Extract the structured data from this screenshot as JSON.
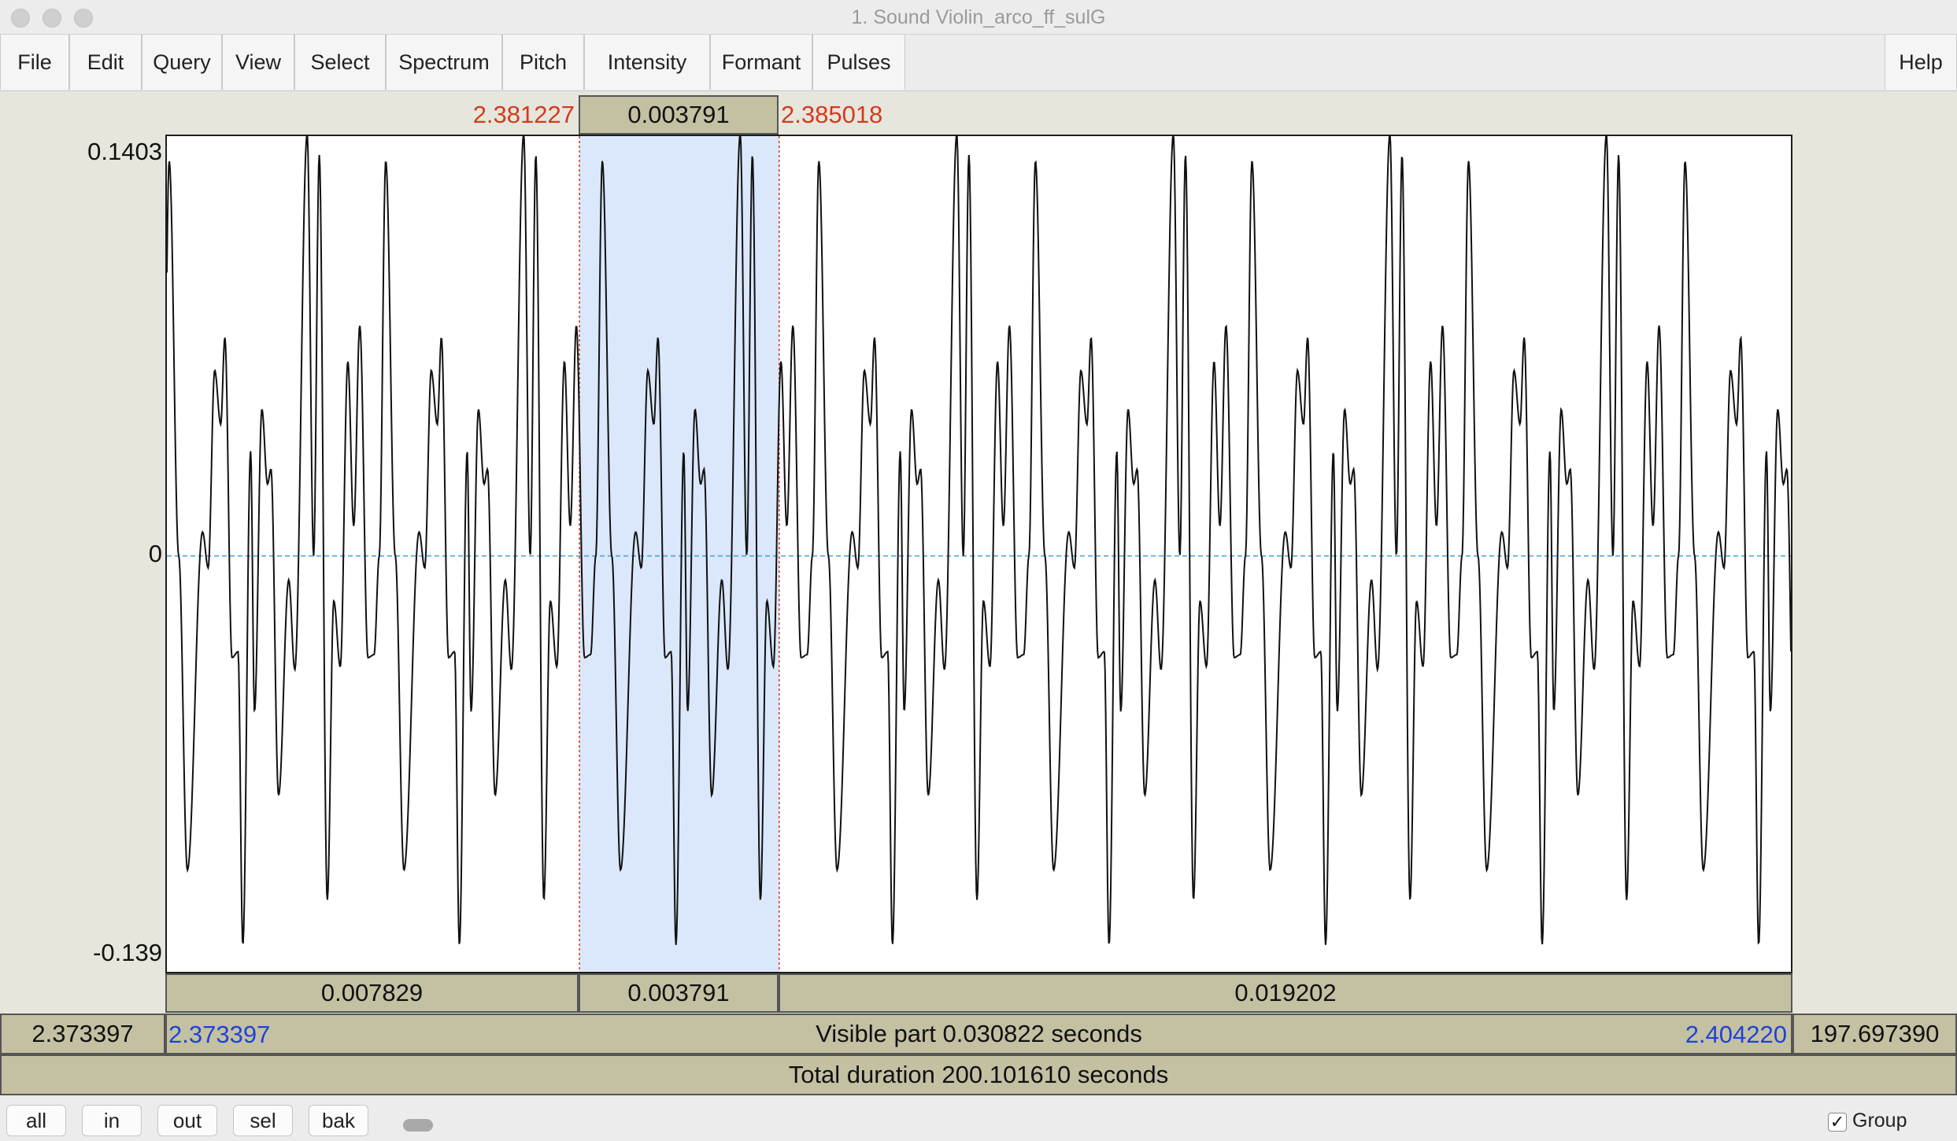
{
  "window": {
    "title": "1. Sound Violin_arco_ff_sulG"
  },
  "menu": {
    "items": [
      "File",
      "Edit",
      "Query",
      "View",
      "Select",
      "Spectrum",
      "Pitch",
      "Intensity",
      "Formant",
      "Pulses"
    ],
    "help": "Help"
  },
  "selection": {
    "start_label": "2.381227",
    "duration_label": "0.003791",
    "end_label": "2.385018"
  },
  "amplitude": {
    "max_label": "0.1403",
    "zero_label": "0",
    "min_label": "-0.139"
  },
  "segments": {
    "left": "0.007829",
    "selected": "0.003791",
    "right": "0.019202"
  },
  "visible_bar": {
    "outer_left": "2.373397",
    "start": "2.373397",
    "text": "Visible part 0.030822 seconds",
    "end": "2.404220",
    "outer_right": "197.697390"
  },
  "total_bar": {
    "text": "Total duration 200.101610 seconds"
  },
  "zoom": {
    "buttons": [
      "all",
      "in",
      "out",
      "sel",
      "bak"
    ]
  },
  "group": {
    "label": "Group",
    "checked": true
  },
  "colors": {
    "selection_fill": "#dbe8fb",
    "red_label": "#d43a1e",
    "blue_label": "#1f43d6",
    "bar_fill": "#c4c1a3",
    "zero_line": "#3a9fd8"
  },
  "waveform": {
    "view_start": 2.373397,
    "view_end": 2.40422,
    "ymin": -0.139,
    "ymax": 0.1403,
    "selection_start": 2.381227,
    "selection_end": 2.385018,
    "period": 0.00411,
    "phase_offset": 4.4e-05,
    "template": [
      [
        0.0,
        0.132
      ],
      [
        0.044,
        0.0
      ],
      [
        0.084,
        -0.105
      ],
      [
        0.154,
        0.008
      ],
      [
        0.18,
        -0.004
      ],
      [
        0.21,
        0.062
      ],
      [
        0.238,
        0.044
      ],
      [
        0.257,
        0.073
      ],
      [
        0.29,
        -0.034
      ],
      [
        0.318,
        -0.032
      ],
      [
        0.34,
        -0.13
      ],
      [
        0.376,
        0.035
      ],
      [
        0.394,
        -0.052
      ],
      [
        0.428,
        0.049
      ],
      [
        0.454,
        0.024
      ],
      [
        0.47,
        0.029
      ],
      [
        0.505,
        -0.08
      ],
      [
        0.552,
        -0.008
      ],
      [
        0.58,
        -0.038
      ],
      [
        0.637,
        0.141
      ],
      [
        0.667,
        0.0
      ],
      [
        0.693,
        0.134
      ],
      [
        0.73,
        -0.115
      ],
      [
        0.76,
        -0.015
      ],
      [
        0.79,
        -0.037
      ],
      [
        0.825,
        0.065
      ],
      [
        0.852,
        0.01
      ],
      [
        0.88,
        0.077
      ],
      [
        0.918,
        -0.034
      ],
      [
        0.946,
        -0.033
      ],
      [
        0.97,
        0.0
      ],
      [
        1.0,
        0.132
      ]
    ]
  }
}
